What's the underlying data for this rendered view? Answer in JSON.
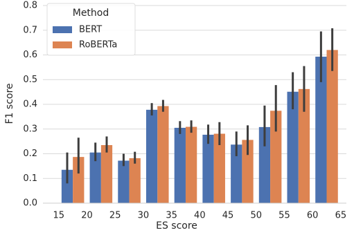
{
  "chart_data": {
    "type": "bar",
    "xlabel": "ES score",
    "ylabel": "F1 score",
    "x": [
      17.5,
      22.5,
      27.5,
      32.5,
      37.5,
      42.5,
      47.5,
      52.5,
      57.5,
      62.5
    ],
    "xlim": [
      12.2,
      66
    ],
    "xticks": [
      15,
      20,
      25,
      30,
      35,
      40,
      45,
      50,
      55,
      60,
      65
    ],
    "ylim": [
      0,
      0.8
    ],
    "yticks": [
      {
        "value": 0,
        "label": "0.0"
      },
      0.1,
      0.2,
      0.3,
      0.4,
      0.5,
      0.6,
      0.7,
      0.8
    ],
    "grid": true,
    "legend": {
      "title": "Method",
      "position": "upper left"
    },
    "series": [
      {
        "name": "BERT",
        "color": "#4c72b0",
        "values": [
          0.135,
          0.205,
          0.172,
          0.378,
          0.305,
          0.277,
          0.237,
          0.308,
          0.451,
          0.593
        ],
        "ci_low": [
          0.08,
          0.17,
          0.15,
          0.355,
          0.28,
          0.24,
          0.19,
          0.23,
          0.38,
          0.49
        ],
        "ci_high": [
          0.205,
          0.245,
          0.2,
          0.405,
          0.332,
          0.318,
          0.29,
          0.395,
          0.53,
          0.695
        ]
      },
      {
        "name": "RoBERTa",
        "color": "#dd8452",
        "values": [
          0.187,
          0.235,
          0.182,
          0.393,
          0.309,
          0.281,
          0.256,
          0.374,
          0.462,
          0.62
        ],
        "ci_low": [
          0.12,
          0.205,
          0.16,
          0.37,
          0.285,
          0.235,
          0.195,
          0.29,
          0.37,
          0.535
        ],
        "ci_high": [
          0.265,
          0.27,
          0.208,
          0.418,
          0.335,
          0.328,
          0.315,
          0.478,
          0.555,
          0.708
        ]
      }
    ]
  }
}
